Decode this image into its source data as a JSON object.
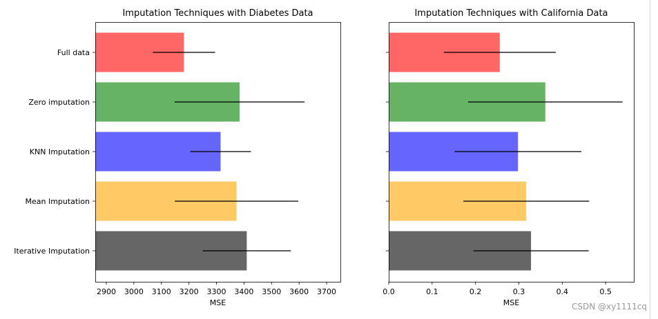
{
  "chart_data": [
    {
      "type": "bar",
      "orientation": "horizontal",
      "title": "Imputation Techniques with Diabetes Data",
      "xlabel": "MSE",
      "ylabel": "",
      "xlim": [
        2860,
        3750
      ],
      "xticks": [
        2900,
        3000,
        3100,
        3200,
        3300,
        3400,
        3500,
        3600,
        3700
      ],
      "xtick_labels": [
        "2900",
        "3000",
        "3100",
        "3200",
        "3300",
        "3400",
        "3500",
        "3600",
        "3700"
      ],
      "categories": [
        "Full data",
        "Zero imputation",
        "KNN Imputation",
        "Mean Imputation",
        "Iterative Imputation"
      ],
      "values": [
        3182,
        3384,
        3315,
        3373,
        3410
      ],
      "errors": [
        113,
        236,
        110,
        224,
        160
      ],
      "colors": [
        "#ff0000",
        "#008000",
        "#0000ff",
        "#ffa500",
        "#000000"
      ],
      "alpha": 0.6,
      "show_ytick_labels": true
    },
    {
      "type": "bar",
      "orientation": "horizontal",
      "title": "Imputation Techniques with California Data",
      "xlabel": "MSE",
      "ylabel": "",
      "xlim": [
        0,
        0.565
      ],
      "xticks": [
        0,
        0.1,
        0.2,
        0.3,
        0.4,
        0.5
      ],
      "xtick_labels": [
        "0.0",
        "0.1",
        "0.2",
        "0.3",
        "0.4",
        "0.5"
      ],
      "categories": [
        "Full data",
        "Zero imputation",
        "KNN Imputation",
        "Mean Imputation",
        "Iterative Imputation"
      ],
      "values": [
        0.256,
        0.361,
        0.298,
        0.317,
        0.328
      ],
      "errors": [
        0.129,
        0.178,
        0.146,
        0.145,
        0.133
      ],
      "colors": [
        "#ff0000",
        "#008000",
        "#0000ff",
        "#ffa500",
        "#000000"
      ],
      "alpha": 0.6,
      "show_ytick_labels": false
    }
  ],
  "watermark": "CSDN @xy1111cq"
}
